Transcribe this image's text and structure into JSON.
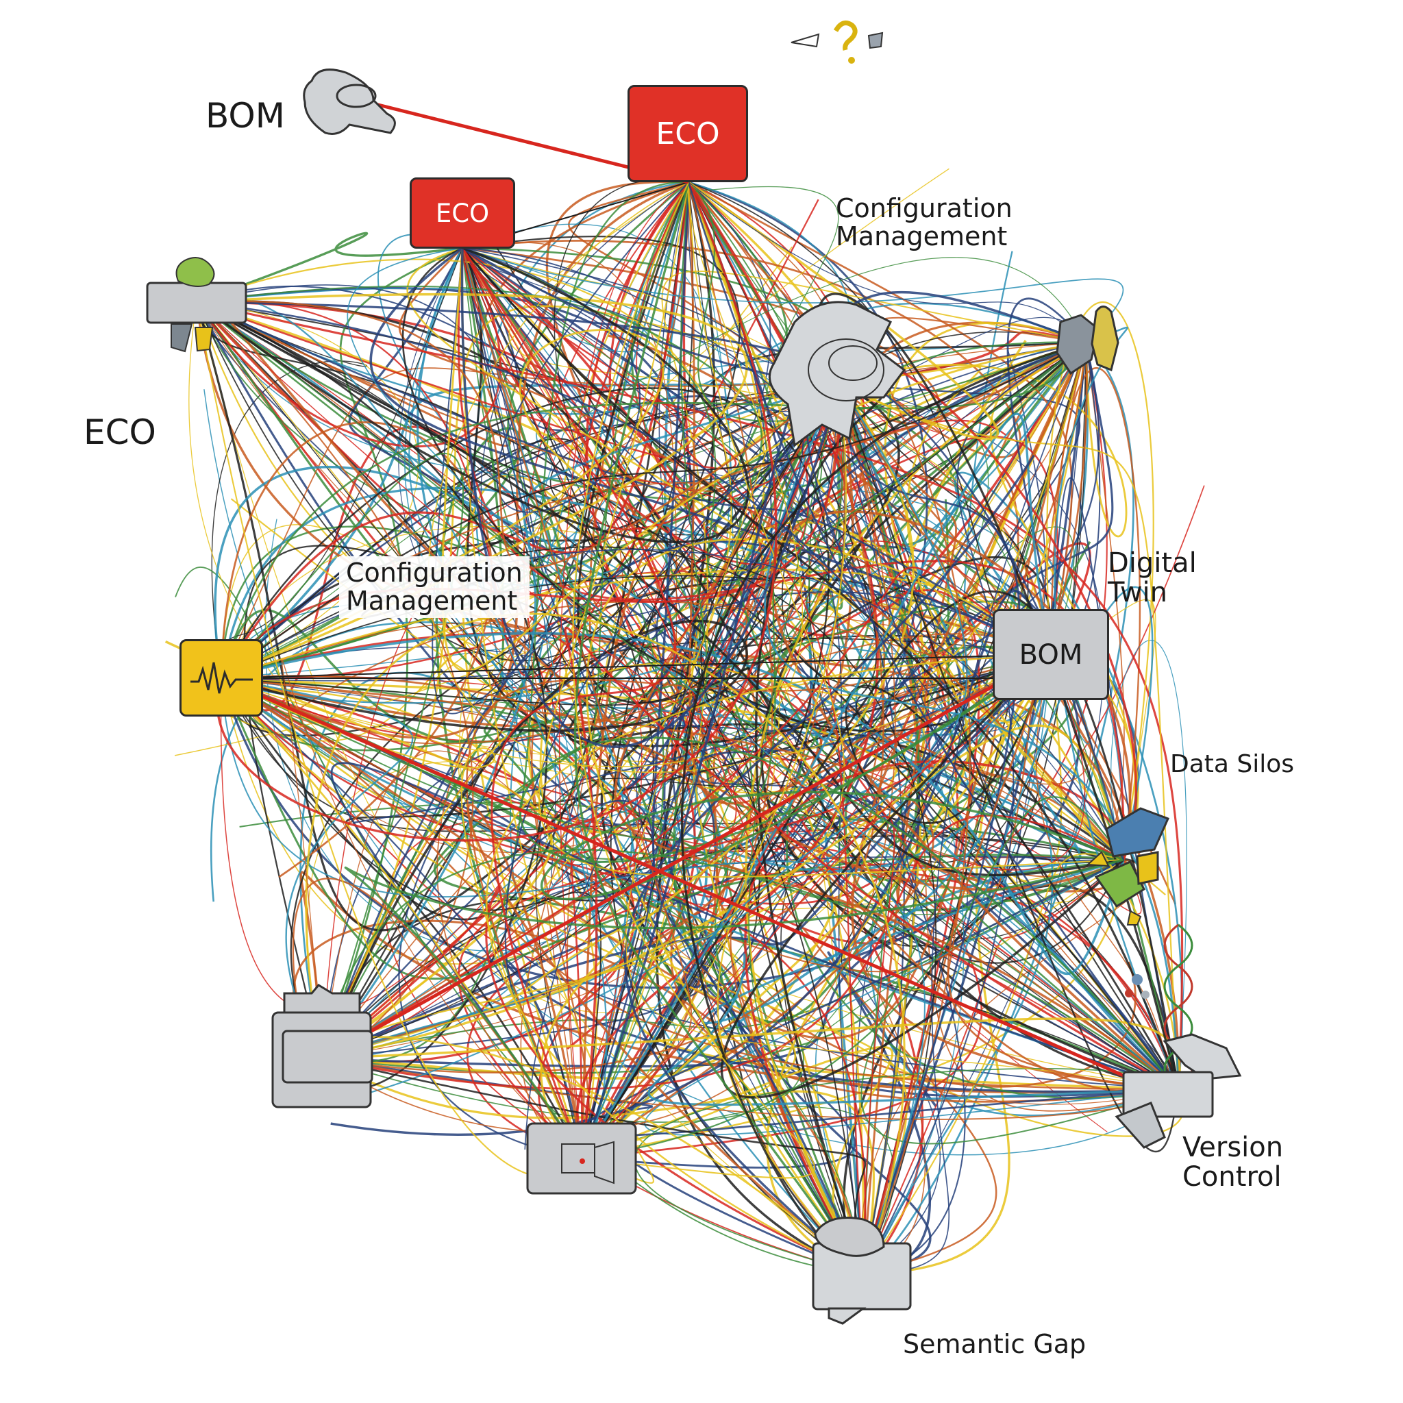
{
  "nodes": {
    "eco_top": "ECO",
    "eco_mid": "ECO",
    "bom_right": "BOM"
  },
  "labels": {
    "bom_top_left": "BOM",
    "eco_left": "ECO",
    "config_top_right": "Configuration\nManagement",
    "config_center": "Configuration\nManagement",
    "digital_twin": "Digital\nTwin",
    "data_silos": "Data Silos",
    "version_control": "Version\nControl",
    "semantic_gap": "Semantic Gap"
  },
  "colors": {
    "line_palette": [
      "#d7261e",
      "#e8c21a",
      "#1f1f1f",
      "#2a8fb5",
      "#3b8c3b",
      "#c85a1e",
      "#25407a"
    ],
    "node_red": "#e03127",
    "node_gray": "#c9cbce",
    "node_yellow": "#f1c21b"
  },
  "icons": [
    "bulb-icon",
    "question-icon",
    "bom-pipe-icon",
    "plant-icon",
    "tangle-icon",
    "puzzle-icon",
    "waveform-icon",
    "colorful-block-icon",
    "dna-icon",
    "folder-icon",
    "screen-icon",
    "box-icon"
  ]
}
